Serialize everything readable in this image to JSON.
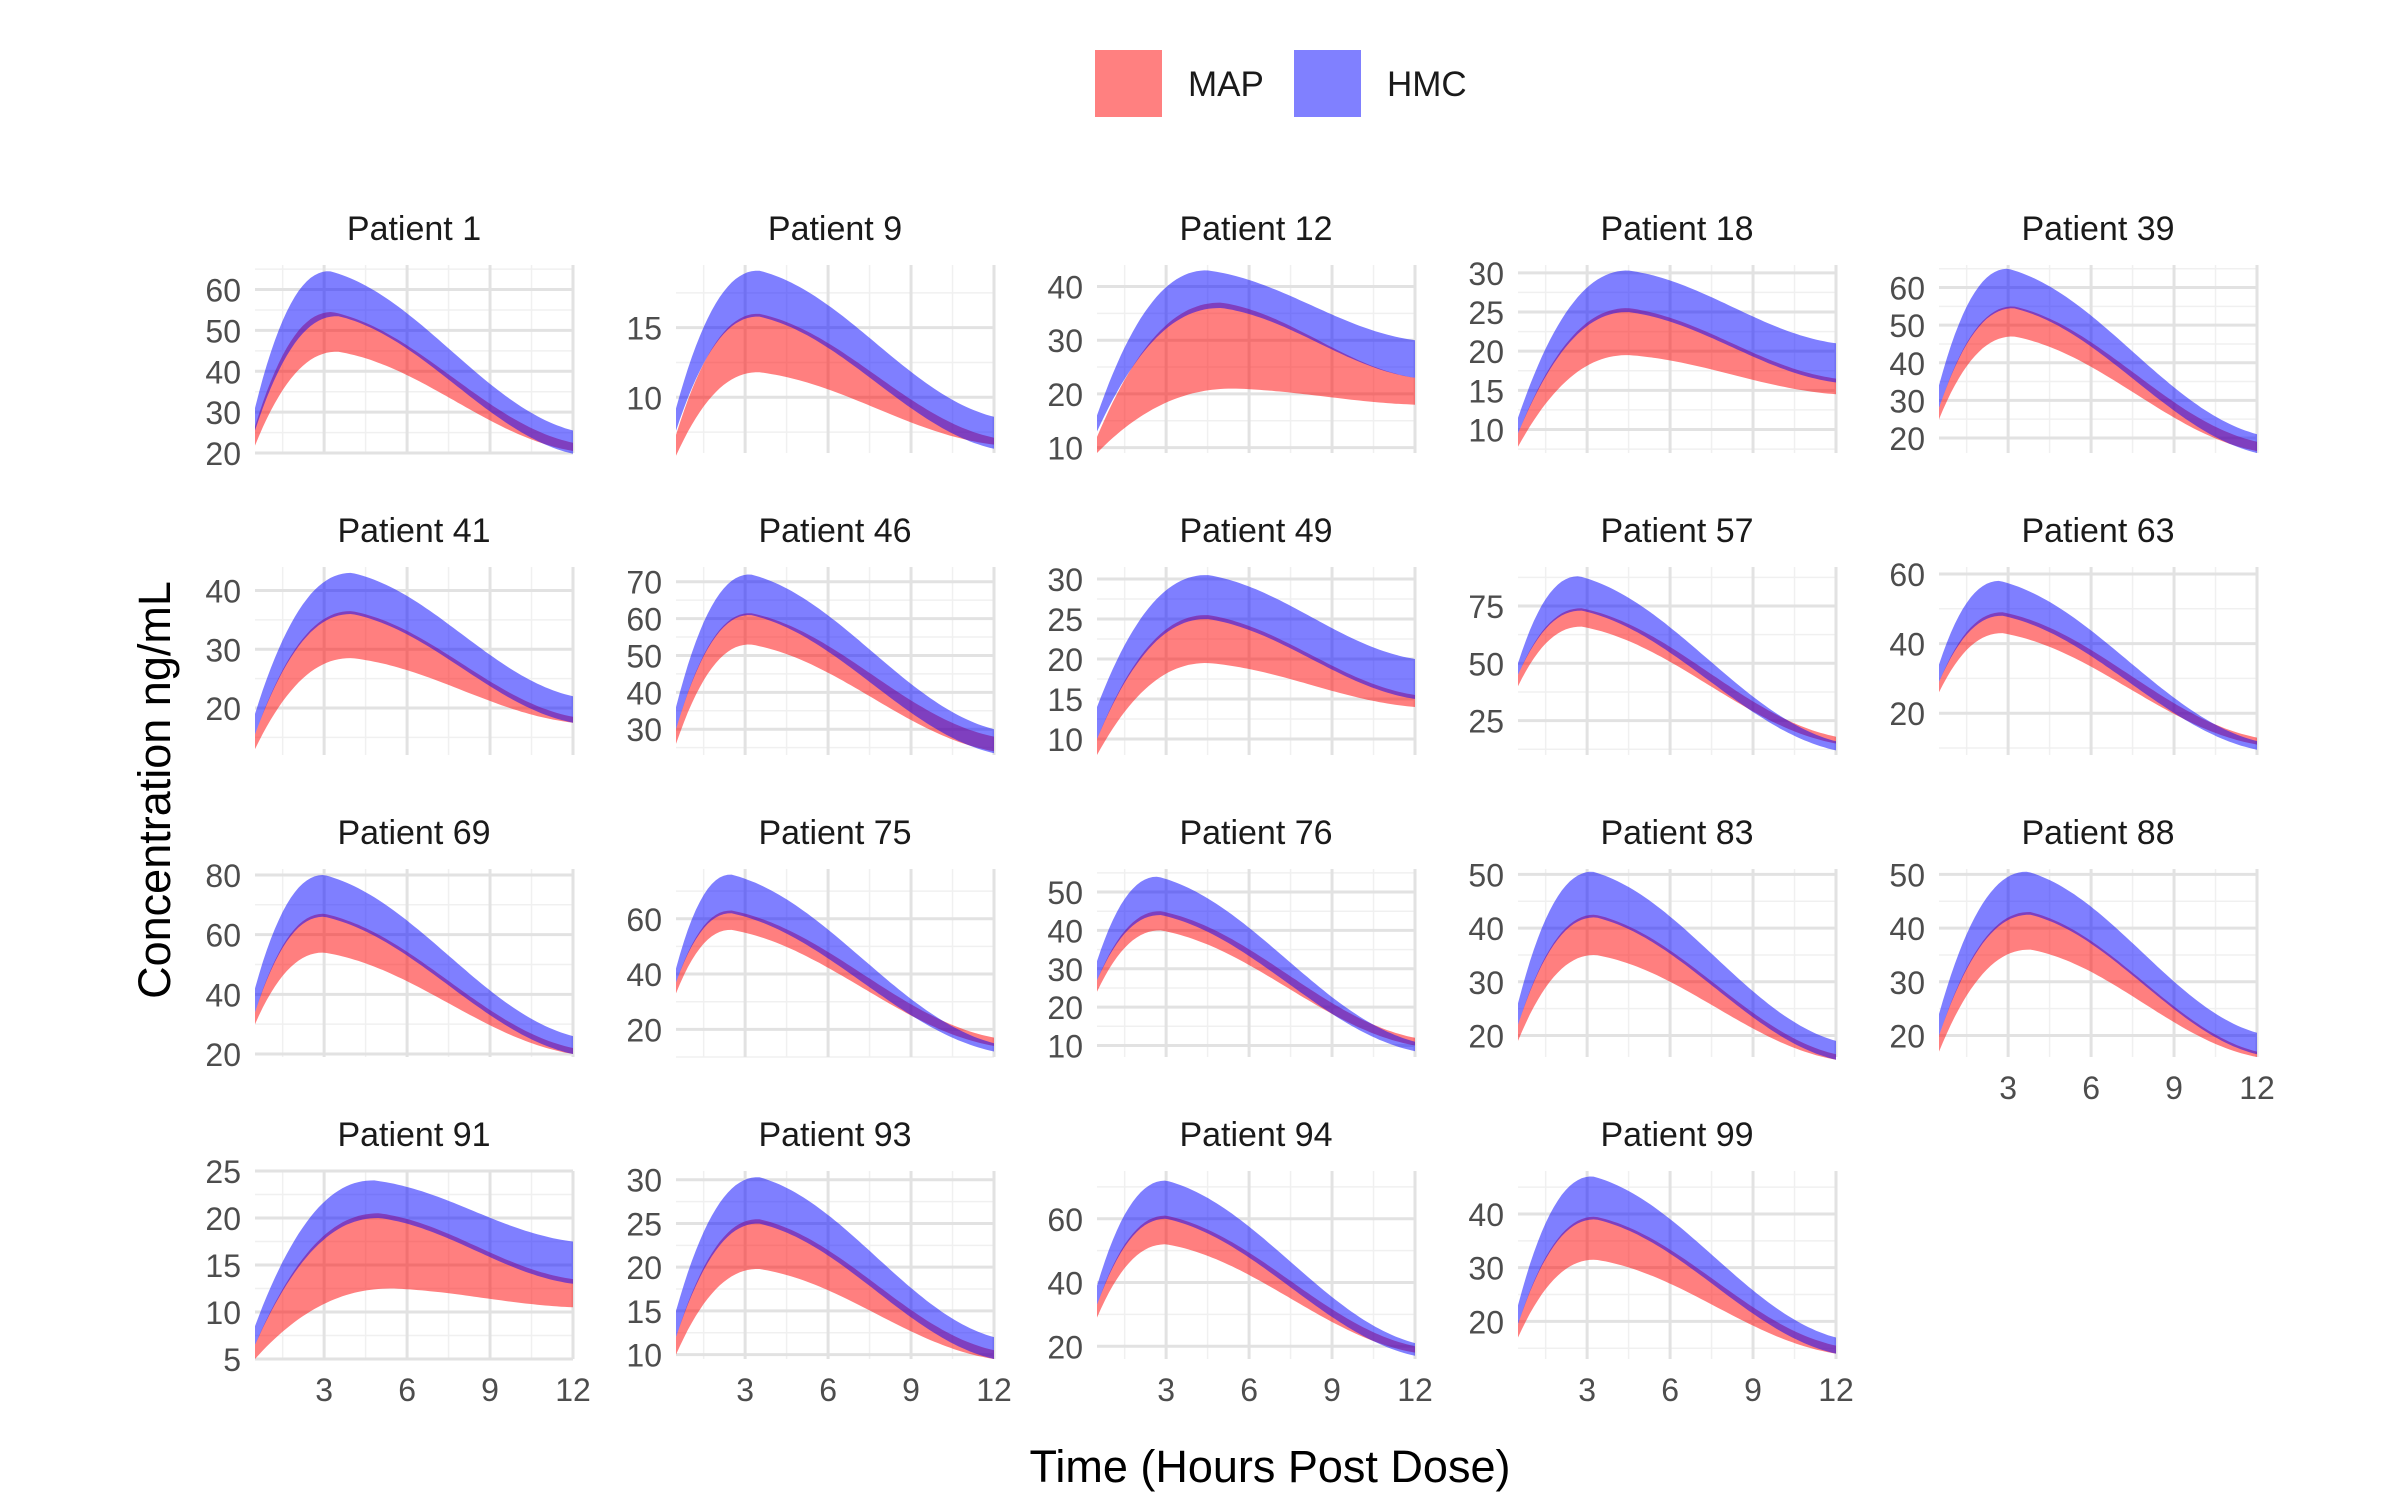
{
  "chart_data": {
    "type": "area",
    "title": "",
    "xlabel": "Time (Hours Post Dose)",
    "ylabel": "Concentration ng/mL",
    "legend": {
      "placement": "top",
      "entries": [
        {
          "name": "MAP",
          "color": "#FF8080"
        },
        {
          "name": "HMC",
          "color": "#8080FF"
        }
      ]
    },
    "series_colors": {
      "MAP": "#FF000080",
      "HMC": "#0000FF80"
    },
    "xlim": [
      0.5,
      12
    ],
    "x_ticks": [
      3,
      6,
      9,
      12
    ],
    "grid": true,
    "panel_title_prefix": "Patient",
    "panels": [
      {
        "patient": "1",
        "ylim": [
          20,
          66
        ],
        "y_ticks": [
          20,
          30,
          40,
          50,
          60
        ],
        "map_lower": {
          "c0": 21.8,
          "peak": 44.8,
          "tpeak": 3.5,
          "c12": 20.5
        },
        "map_upper": {
          "c0": 26.5,
          "peak": 54.5,
          "tpeak": 3.3,
          "c12": 22.5
        },
        "hmc_lower": {
          "c0": 25.5,
          "peak": 53.5,
          "tpeak": 3.5,
          "c12": 19.8
        },
        "hmc_upper": {
          "c0": 31.0,
          "peak": 64.5,
          "tpeak": 3.2,
          "c12": 25.5
        }
      },
      {
        "patient": "9",
        "ylim": [
          6,
          19.5
        ],
        "y_ticks": [
          10,
          15
        ],
        "map_lower": {
          "c0": 5.8,
          "peak": 11.8,
          "tpeak": 3.5,
          "c12": 6.6
        },
        "map_upper": {
          "c0": 7.3,
          "peak": 16.0,
          "tpeak": 3.5,
          "c12": 7.1
        },
        "hmc_lower": {
          "c0": 7.6,
          "peak": 15.8,
          "tpeak": 3.5,
          "c12": 6.3
        },
        "hmc_upper": {
          "c0": 9.2,
          "peak": 19.1,
          "tpeak": 3.5,
          "c12": 8.6
        }
      },
      {
        "patient": "12",
        "ylim": [
          9,
          44
        ],
        "y_ticks": [
          10,
          20,
          30,
          40
        ],
        "map_lower": {
          "c0": 9.0,
          "peak": 21.0,
          "tpeak": 5.5,
          "c12": 18.0
        },
        "map_upper": {
          "c0": 12.0,
          "peak": 37.0,
          "tpeak": 5.0,
          "c12": 23.0
        },
        "hmc_lower": {
          "c0": 13.0,
          "peak": 36.0,
          "tpeak": 5.0,
          "c12": 23.0
        },
        "hmc_upper": {
          "c0": 16.0,
          "peak": 43.0,
          "tpeak": 4.5,
          "c12": 30.0
        }
      },
      {
        "patient": "18",
        "ylim": [
          7,
          31
        ],
        "y_ticks": [
          10,
          15,
          20,
          25,
          30
        ],
        "map_lower": {
          "c0": 7.8,
          "peak": 19.5,
          "tpeak": 4.5,
          "c12": 14.5
        },
        "map_upper": {
          "c0": 9.5,
          "peak": 25.5,
          "tpeak": 4.5,
          "c12": 16.5
        },
        "hmc_lower": {
          "c0": 9.5,
          "peak": 25.0,
          "tpeak": 4.5,
          "c12": 16.0
        },
        "hmc_upper": {
          "c0": 11.5,
          "peak": 30.3,
          "tpeak": 4.5,
          "c12": 21.0
        }
      },
      {
        "patient": "39",
        "ylim": [
          16,
          66
        ],
        "y_ticks": [
          20,
          30,
          40,
          50,
          60
        ],
        "map_lower": {
          "c0": 25.0,
          "peak": 47.0,
          "tpeak": 3.2,
          "c12": 16.5
        },
        "map_upper": {
          "c0": 28.0,
          "peak": 55.0,
          "tpeak": 3.2,
          "c12": 19.0
        },
        "hmc_lower": {
          "c0": 28.0,
          "peak": 54.5,
          "tpeak": 3.2,
          "c12": 16.0
        },
        "hmc_upper": {
          "c0": 34.0,
          "peak": 65.0,
          "tpeak": 3.0,
          "c12": 21.0
        }
      },
      {
        "patient": "41",
        "ylim": [
          12,
          44
        ],
        "y_ticks": [
          20,
          30,
          40
        ],
        "map_lower": {
          "c0": 13.0,
          "peak": 28.5,
          "tpeak": 4.0,
          "c12": 17.5
        },
        "map_upper": {
          "c0": 15.5,
          "peak": 36.5,
          "tpeak": 4.0,
          "c12": 18.5
        },
        "hmc_lower": {
          "c0": 15.5,
          "peak": 36.0,
          "tpeak": 4.0,
          "c12": 17.5
        },
        "hmc_upper": {
          "c0": 19.0,
          "peak": 43.0,
          "tpeak": 4.0,
          "c12": 22.0
        }
      },
      {
        "patient": "46",
        "ylim": [
          23,
          74
        ],
        "y_ticks": [
          30,
          40,
          50,
          60,
          70
        ],
        "map_lower": {
          "c0": 26.0,
          "peak": 53.0,
          "tpeak": 3.2,
          "c12": 24.0
        },
        "map_upper": {
          "c0": 30.0,
          "peak": 61.5,
          "tpeak": 3.2,
          "c12": 28.0
        },
        "hmc_lower": {
          "c0": 30.0,
          "peak": 61.0,
          "tpeak": 3.2,
          "c12": 23.5
        },
        "hmc_upper": {
          "c0": 36.0,
          "peak": 72.0,
          "tpeak": 3.2,
          "c12": 30.0
        }
      },
      {
        "patient": "49",
        "ylim": [
          8,
          31.5
        ],
        "y_ticks": [
          10,
          15,
          20,
          25,
          30
        ],
        "map_lower": {
          "c0": 8.0,
          "peak": 19.5,
          "tpeak": 4.5,
          "c12": 14.0
        },
        "map_upper": {
          "c0": 10.0,
          "peak": 25.5,
          "tpeak": 4.5,
          "c12": 15.5
        },
        "hmc_lower": {
          "c0": 10.0,
          "peak": 25.0,
          "tpeak": 4.5,
          "c12": 15.0
        },
        "hmc_upper": {
          "c0": 14.0,
          "peak": 30.5,
          "tpeak": 4.5,
          "c12": 20.0
        }
      },
      {
        "patient": "57",
        "ylim": [
          10,
          92
        ],
        "y_ticks": [
          25,
          50,
          75
        ],
        "map_lower": {
          "c0": 40.0,
          "peak": 66.0,
          "tpeak": 2.8,
          "c12": 15.0
        },
        "map_upper": {
          "c0": 45.0,
          "peak": 74.0,
          "tpeak": 2.8,
          "c12": 18.0
        },
        "hmc_lower": {
          "c0": 45.0,
          "peak": 73.0,
          "tpeak": 2.8,
          "c12": 12.0
        },
        "hmc_upper": {
          "c0": 50.0,
          "peak": 88.0,
          "tpeak": 2.7,
          "c12": 16.0
        }
      },
      {
        "patient": "63",
        "ylim": [
          8,
          62
        ],
        "y_ticks": [
          20,
          40,
          60
        ],
        "map_lower": {
          "c0": 26.0,
          "peak": 43.0,
          "tpeak": 2.8,
          "c12": 11.0
        },
        "map_upper": {
          "c0": 29.0,
          "peak": 49.0,
          "tpeak": 2.8,
          "c12": 13.0
        },
        "hmc_lower": {
          "c0": 29.0,
          "peak": 48.0,
          "tpeak": 2.8,
          "c12": 9.5
        },
        "hmc_upper": {
          "c0": 34.0,
          "peak": 58.0,
          "tpeak": 2.7,
          "c12": 12.0
        }
      },
      {
        "patient": "69",
        "ylim": [
          19,
          82
        ],
        "y_ticks": [
          20,
          40,
          60,
          80
        ],
        "map_lower": {
          "c0": 30.0,
          "peak": 54.0,
          "tpeak": 3.0,
          "c12": 20.0
        },
        "map_upper": {
          "c0": 34.0,
          "peak": 67.0,
          "tpeak": 3.0,
          "c12": 22.0
        },
        "hmc_lower": {
          "c0": 34.0,
          "peak": 66.0,
          "tpeak": 3.0,
          "c12": 20.0
        },
        "hmc_upper": {
          "c0": 42.0,
          "peak": 80.0,
          "tpeak": 3.0,
          "c12": 26.0
        }
      },
      {
        "patient": "75",
        "ylim": [
          10,
          78
        ],
        "y_ticks": [
          20,
          40,
          60
        ],
        "map_lower": {
          "c0": 33.0,
          "peak": 56.0,
          "tpeak": 2.5,
          "c12": 14.0
        },
        "map_upper": {
          "c0": 37.0,
          "peak": 63.0,
          "tpeak": 2.5,
          "c12": 17.0
        },
        "hmc_lower": {
          "c0": 37.0,
          "peak": 62.0,
          "tpeak": 2.5,
          "c12": 12.0
        },
        "hmc_upper": {
          "c0": 42.0,
          "peak": 76.0,
          "tpeak": 2.5,
          "c12": 15.0
        }
      },
      {
        "patient": "76",
        "ylim": [
          7,
          56
        ],
        "y_ticks": [
          10,
          20,
          30,
          40,
          50
        ],
        "map_lower": {
          "c0": 24.0,
          "peak": 40.0,
          "tpeak": 2.8,
          "c12": 10.0
        },
        "map_upper": {
          "c0": 27.0,
          "peak": 45.0,
          "tpeak": 2.8,
          "c12": 12.0
        },
        "hmc_lower": {
          "c0": 27.0,
          "peak": 44.0,
          "tpeak": 2.8,
          "c12": 8.5
        },
        "hmc_upper": {
          "c0": 32.0,
          "peak": 54.0,
          "tpeak": 2.7,
          "c12": 11.0
        }
      },
      {
        "patient": "83",
        "ylim": [
          16,
          51
        ],
        "y_ticks": [
          20,
          30,
          40,
          50
        ],
        "map_lower": {
          "c0": 19.0,
          "peak": 35.0,
          "tpeak": 3.3,
          "c12": 15.5
        },
        "map_upper": {
          "c0": 22.0,
          "peak": 42.5,
          "tpeak": 3.3,
          "c12": 16.5
        },
        "hmc_lower": {
          "c0": 22.0,
          "peak": 42.0,
          "tpeak": 3.3,
          "c12": 15.5
        },
        "hmc_upper": {
          "c0": 26.0,
          "peak": 50.5,
          "tpeak": 3.2,
          "c12": 19.0
        }
      },
      {
        "patient": "88",
        "ylim": [
          16,
          51
        ],
        "y_ticks": [
          20,
          30,
          40,
          50
        ],
        "map_lower": {
          "c0": 17.0,
          "peak": 36.0,
          "tpeak": 3.8,
          "c12": 16.0
        },
        "map_upper": {
          "c0": 20.0,
          "peak": 43.0,
          "tpeak": 3.8,
          "c12": 17.0
        },
        "hmc_lower": {
          "c0": 20.0,
          "peak": 42.5,
          "tpeak": 3.8,
          "c12": 16.5
        },
        "hmc_upper": {
          "c0": 24.0,
          "peak": 50.5,
          "tpeak": 3.7,
          "c12": 20.5
        }
      },
      {
        "patient": "91",
        "ylim": [
          5,
          25
        ],
        "y_ticks": [
          5,
          10,
          15,
          20,
          25
        ],
        "map_lower": {
          "c0": 5.0,
          "peak": 12.5,
          "tpeak": 5.5,
          "c12": 10.5
        },
        "map_upper": {
          "c0": 6.5,
          "peak": 20.5,
          "tpeak": 5.0,
          "c12": 13.5
        },
        "hmc_lower": {
          "c0": 6.5,
          "peak": 20.0,
          "tpeak": 5.0,
          "c12": 13.0
        },
        "hmc_upper": {
          "c0": 8.5,
          "peak": 24.0,
          "tpeak": 4.8,
          "c12": 17.5
        }
      },
      {
        "patient": "93",
        "ylim": [
          9.5,
          31
        ],
        "y_ticks": [
          10,
          15,
          20,
          25,
          30
        ],
        "map_lower": {
          "c0": 10.0,
          "peak": 19.8,
          "tpeak": 3.5,
          "c12": 9.5
        },
        "map_upper": {
          "c0": 12.0,
          "peak": 25.5,
          "tpeak": 3.5,
          "c12": 10.5
        },
        "hmc_lower": {
          "c0": 12.0,
          "peak": 25.0,
          "tpeak": 3.5,
          "c12": 9.5
        },
        "hmc_upper": {
          "c0": 15.0,
          "peak": 30.3,
          "tpeak": 3.5,
          "c12": 12.0
        }
      },
      {
        "patient": "94",
        "ylim": [
          16,
          75
        ],
        "y_ticks": [
          20,
          40,
          60
        ],
        "map_lower": {
          "c0": 29.0,
          "peak": 52.0,
          "tpeak": 3.0,
          "c12": 18.0
        },
        "map_upper": {
          "c0": 33.0,
          "peak": 61.0,
          "tpeak": 3.0,
          "c12": 20.0
        },
        "hmc_lower": {
          "c0": 33.0,
          "peak": 60.0,
          "tpeak": 3.0,
          "c12": 17.0
        },
        "hmc_upper": {
          "c0": 39.0,
          "peak": 72.0,
          "tpeak": 3.0,
          "c12": 21.0
        }
      },
      {
        "patient": "99",
        "ylim": [
          13,
          48
        ],
        "y_ticks": [
          20,
          30,
          40
        ],
        "map_lower": {
          "c0": 17.0,
          "peak": 31.5,
          "tpeak": 3.3,
          "c12": 14.0
        },
        "map_upper": {
          "c0": 19.5,
          "peak": 39.5,
          "tpeak": 3.3,
          "c12": 15.5
        },
        "hmc_lower": {
          "c0": 19.5,
          "peak": 39.0,
          "tpeak": 3.3,
          "c12": 14.0
        },
        "hmc_upper": {
          "c0": 23.0,
          "peak": 47.0,
          "tpeak": 3.2,
          "c12": 17.0
        }
      }
    ]
  }
}
